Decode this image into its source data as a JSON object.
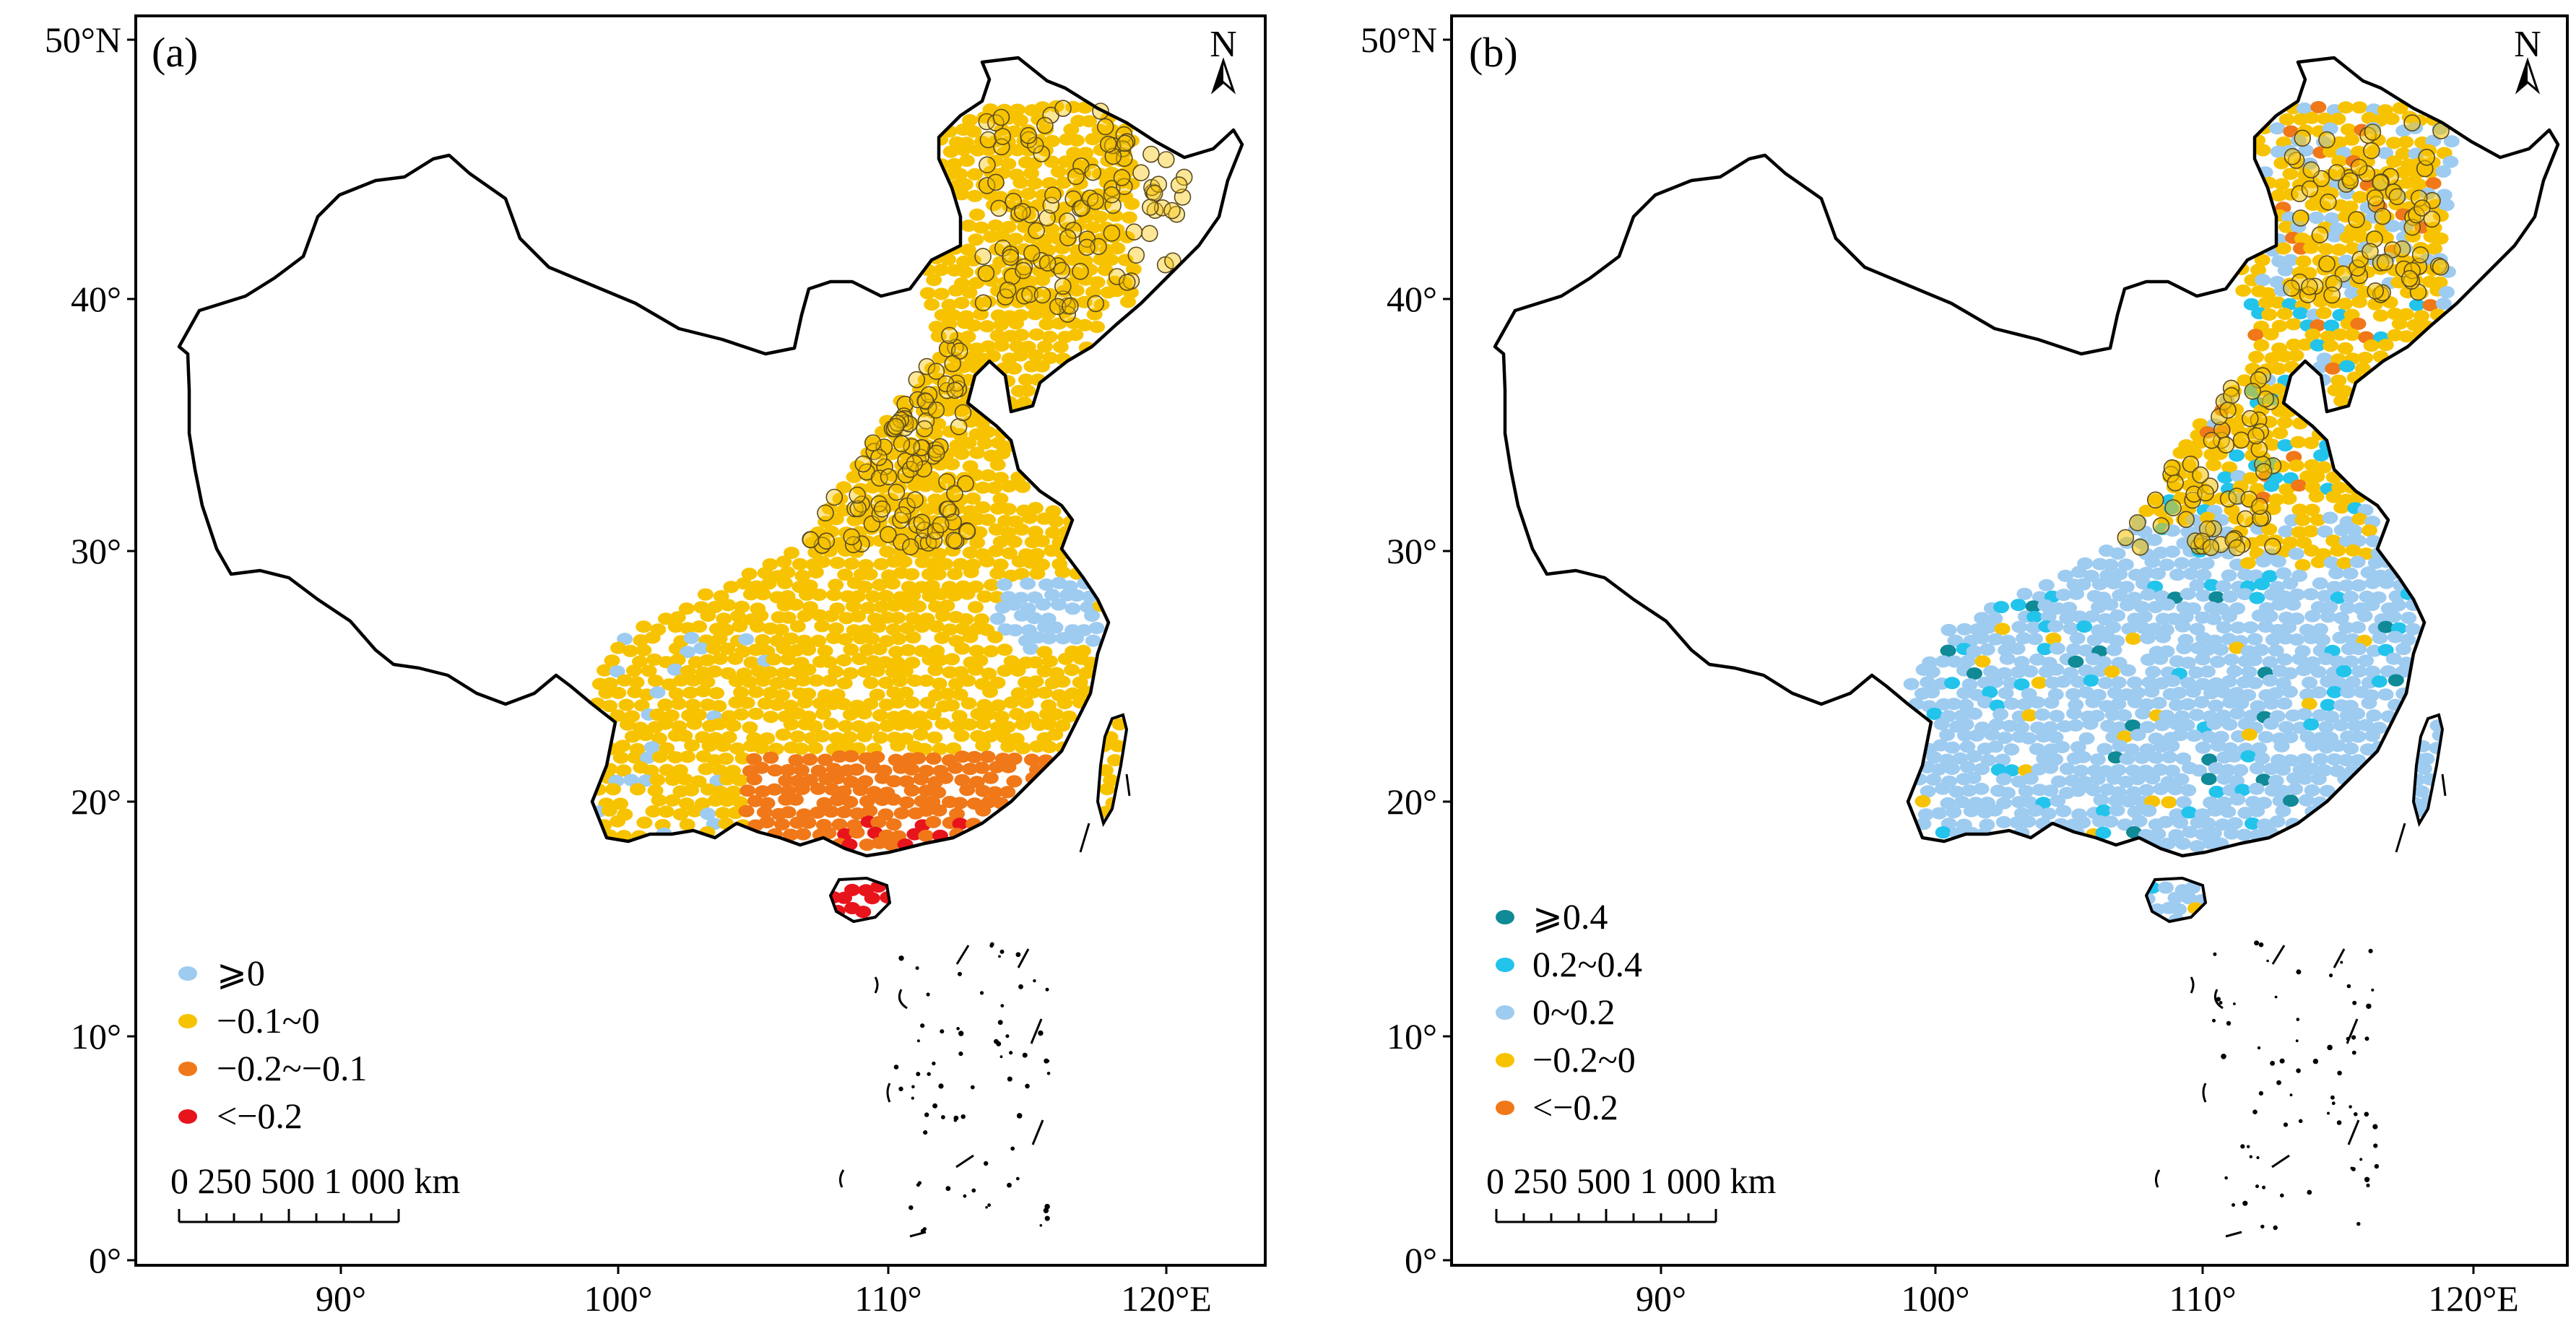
{
  "panels": [
    {
      "id": "a",
      "label": "(a)",
      "north": "N",
      "x_ticks": [
        "90°",
        "100°",
        "110°",
        "120°E"
      ],
      "y_ticks": [
        "50°N",
        "40°",
        "30°",
        "20°",
        "10°",
        "0°"
      ],
      "legend": [
        {
          "label": "⩾0",
          "color": "#9ecbf0"
        },
        {
          "label": "−0.1~0",
          "color": "#f7c300"
        },
        {
          "label": "−0.2~−0.1",
          "color": "#f07818"
        },
        {
          "label": "<−0.2",
          "color": "#e8141c"
        }
      ],
      "scale_label": "0 250 500 1 000 km"
    },
    {
      "id": "b",
      "label": "(b)",
      "north": "N",
      "x_ticks": [
        "90°",
        "100°",
        "110°",
        "120°E"
      ],
      "y_ticks": [
        "50°N",
        "40°",
        "30°",
        "20°",
        "10°",
        "0°"
      ],
      "legend": [
        {
          "label": "⩾0.4",
          "color": "#0f8a96"
        },
        {
          "label": "0.2~0.4",
          "color": "#22c4ec"
        },
        {
          "label": "0~0.2",
          "color": "#9ecbf0"
        },
        {
          "label": "−0.2~0",
          "color": "#f7c300"
        },
        {
          "label": "<−0.2",
          "color": "#f07818"
        }
      ],
      "scale_label": "0 250 500 1 000 km"
    }
  ]
}
